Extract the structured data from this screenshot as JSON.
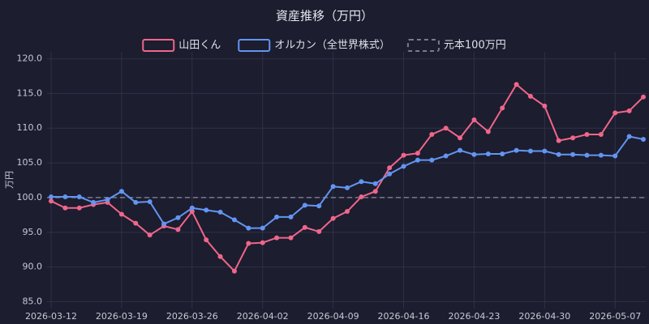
{
  "chart_data": {
    "type": "line",
    "title": "資産推移（万円）",
    "ylabel": "万円",
    "categories": [
      "2026-03-12",
      null,
      null,
      null,
      null,
      "2026-03-19",
      null,
      null,
      null,
      null,
      "2026-03-26",
      null,
      null,
      null,
      null,
      "2026-04-02",
      null,
      null,
      null,
      null,
      "2026-04-09",
      null,
      null,
      null,
      null,
      "2026-04-16",
      null,
      null,
      null,
      null,
      "2026-04-23",
      null,
      null,
      null,
      null,
      "2026-04-30",
      null,
      null,
      null,
      null,
      "2026-05-07",
      null,
      null
    ],
    "series": [
      {
        "name": "山田くん",
        "color": "#f0668a",
        "values": [
          99.5,
          98.5,
          98.5,
          99.0,
          99.3,
          97.6,
          96.3,
          94.6,
          95.9,
          95.4,
          98.0,
          93.9,
          91.5,
          89.4,
          93.4,
          93.5,
          94.2,
          94.2,
          95.7,
          95.1,
          97.0,
          98.0,
          100.1,
          100.9,
          104.3,
          106.1,
          106.4,
          109.1,
          110.0,
          108.6,
          111.2,
          109.5,
          112.9,
          116.3,
          114.6,
          113.2,
          108.2,
          108.6,
          109.1,
          109.1,
          112.2,
          112.5,
          114.5
        ]
      },
      {
        "name": "オルカン（全世界株式）",
        "color": "#6395f2",
        "values": [
          100.1,
          100.1,
          100.1,
          99.3,
          99.7,
          100.9,
          99.3,
          99.4,
          96.2,
          97.1,
          98.5,
          98.2,
          97.9,
          96.8,
          95.6,
          95.6,
          97.2,
          97.2,
          98.9,
          98.8,
          101.6,
          101.4,
          102.3,
          102.0,
          103.4,
          104.5,
          105.4,
          105.4,
          106.0,
          106.8,
          106.2,
          106.3,
          106.3,
          106.8,
          106.7,
          106.7,
          106.2,
          106.2,
          106.1,
          106.1,
          106.0,
          108.8,
          108.4
        ]
      }
    ],
    "reference": {
      "name": "元本100万円",
      "value": 100,
      "color": "#7a7c8e"
    },
    "ylim": [
      84,
      121
    ],
    "yticks": [
      {
        "value": 85,
        "label": "85.0"
      },
      {
        "value": 90,
        "label": "90.0"
      },
      {
        "value": 95,
        "label": "95.0"
      },
      {
        "value": 100,
        "label": "100.0"
      },
      {
        "value": 105,
        "label": "105.0"
      },
      {
        "value": 110,
        "label": "110.0"
      },
      {
        "value": 115,
        "label": "115.0"
      },
      {
        "value": 120,
        "label": "120.0"
      }
    ],
    "grid": true
  }
}
